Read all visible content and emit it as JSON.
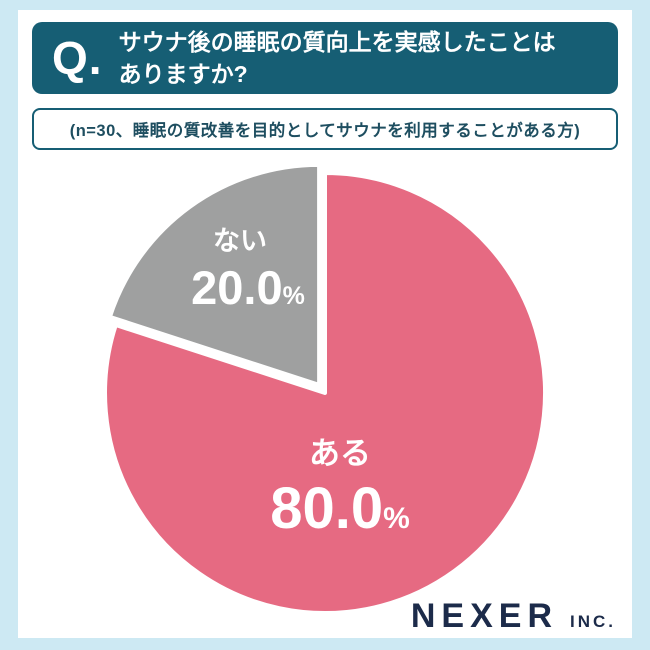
{
  "header": {
    "q_label": "Q.",
    "question_line1": "サウナ後の睡眠の質向上を実感したことは",
    "question_line2": "ありますか?"
  },
  "condition_note": "(n=30、睡眠の質改善を目的としてサウナを利用することがある方)",
  "logo": {
    "name": "NEXER",
    "suffix": "INC."
  },
  "colors": {
    "frame_bg": "#cde9f3",
    "header_bg": "#165e74",
    "accent_teal": "#165e74",
    "note_text": "#1e4e60",
    "logo_navy": "#1c2b4a"
  },
  "chart_data": {
    "type": "pie",
    "title": "サウナ後の睡眠の質向上を実感したことはありますか?",
    "sample_note": "n=30、睡眠の質改善を目的としてサウナを利用することがある方",
    "start_angle_deg": -90,
    "direction": "clockwise",
    "legend_position": "inside-slices",
    "slices": [
      {
        "label": "ある",
        "value": 80.0,
        "display": "80.0",
        "unit": "%",
        "color": "#e66a82",
        "exploded": false
      },
      {
        "label": "ない",
        "value": 20.0,
        "display": "20.0",
        "unit": "%",
        "color": "#9fa0a0",
        "exploded": true
      }
    ]
  }
}
